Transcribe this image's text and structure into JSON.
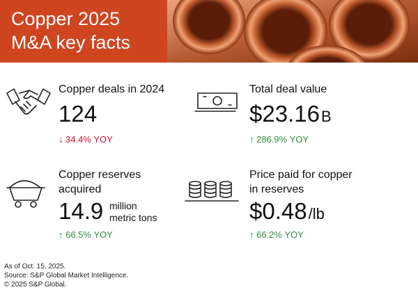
{
  "header": {
    "title_lines": [
      "Copper 2025",
      "M&A key facts"
    ]
  },
  "stats": [
    {
      "label_lines": [
        "Copper deals in 2024"
      ],
      "value": "124",
      "change": "↓ 34.4% YOY",
      "direction": "down"
    },
    {
      "label_lines": [
        "Total deal value"
      ],
      "value": "$23.16",
      "unit_lines": [
        "B"
      ],
      "change": "↑ 286.9% YOY",
      "direction": "up"
    },
    {
      "label_lines": [
        "Copper reserves",
        "acquired"
      ],
      "value": "14.9",
      "unit_lines": [
        "million",
        "metric tons"
      ],
      "change": "↑ 66.5% YOY",
      "direction": "up"
    },
    {
      "label_lines": [
        "Price paid for copper",
        "in reserves"
      ],
      "value": "$0.48",
      "unit_lines": [
        "/lb"
      ],
      "change": "↑ 66.2% YOY",
      "direction": "up"
    }
  ],
  "footer": {
    "lines": [
      "As of Oct. 15, 2025.",
      "Source: S&P Global Market Intelligence.",
      "© 2025 S&P Global."
    ]
  }
}
